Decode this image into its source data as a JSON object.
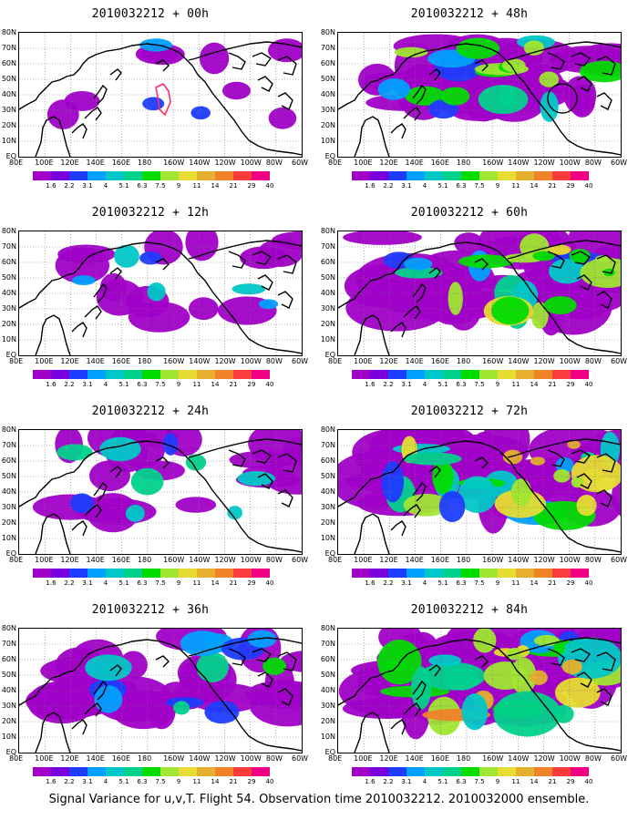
{
  "panels": [
    {
      "title": "2010032212 + 00h",
      "level": 0
    },
    {
      "title": "2010032212 + 48h",
      "level": 4
    },
    {
      "title": "2010032212 + 12h",
      "level": 1
    },
    {
      "title": "2010032212 + 60h",
      "level": 5
    },
    {
      "title": "2010032212 + 24h",
      "level": 2
    },
    {
      "title": "2010032212 + 72h",
      "level": 6
    },
    {
      "title": "2010032212 + 36h",
      "level": 3
    },
    {
      "title": "2010032212 + 84h",
      "level": 7
    }
  ],
  "lat_labels": [
    "80N",
    "70N",
    "60N",
    "50N",
    "40N",
    "30N",
    "20N",
    "10N",
    "EQ"
  ],
  "lon_labels": [
    "80E",
    "100E",
    "120E",
    "140E",
    "160E",
    "180",
    "160W",
    "140W",
    "120W",
    "100W",
    "80W",
    "60W"
  ],
  "colorbar": {
    "labels": [
      "1.6",
      "2.2",
      "3.1",
      "4",
      "5.1",
      "6.3",
      "7.5",
      "9",
      "11",
      "14",
      "21",
      "29",
      "40"
    ],
    "colors": [
      "#a000c8",
      "#7800dc",
      "#1e3cff",
      "#00a0ff",
      "#00c8c8",
      "#00d28c",
      "#00dc00",
      "#a0e632",
      "#e6dc32",
      "#e6af2d",
      "#f08228",
      "#fa3c3c",
      "#f00082"
    ]
  },
  "caption": "Signal Variance for u,v,T. Flight 54. Observation time 2010032212. 2010032000 ensemble."
}
